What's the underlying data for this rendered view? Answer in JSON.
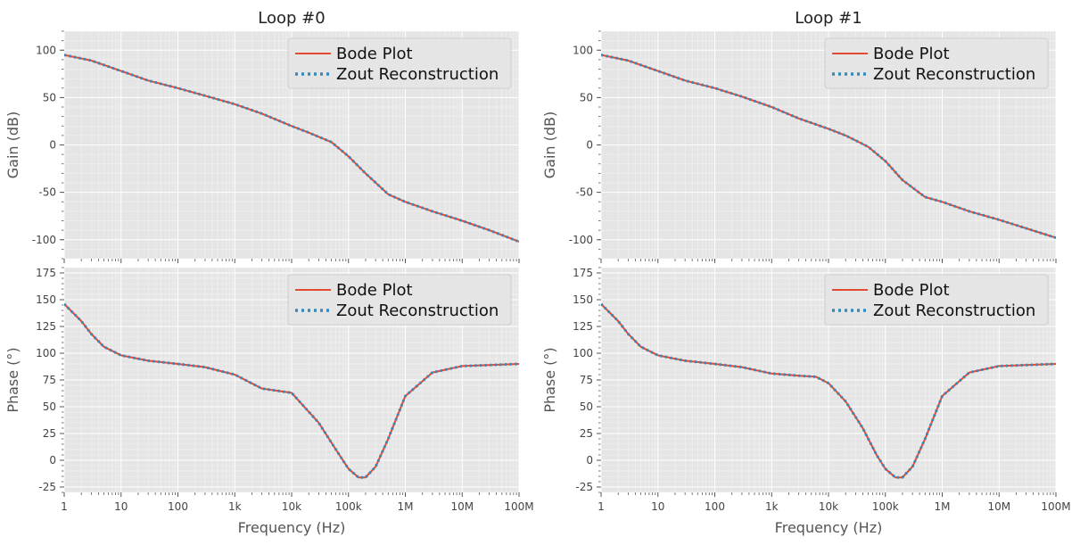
{
  "colors": {
    "panel_bg": "#e5e5e5",
    "grid_major": "#ffffff",
    "bode": "#e24a33",
    "zout": "#348abd",
    "text": "#444444"
  },
  "chart_data": [
    {
      "type": "line",
      "title": "Loop #0",
      "xscale": "log",
      "xlim": [
        1,
        100000000
      ],
      "xlabel": "",
      "ylabel": "Gain (dB)",
      "ylim": [
        -120,
        120
      ],
      "yticks": [
        100,
        50,
        0,
        -50,
        -100
      ],
      "grid": true,
      "legend": "top-right",
      "series": [
        {
          "name": "Bode Plot",
          "style": "solid",
          "color": "#e24a33",
          "x": [
            1,
            3,
            10,
            30,
            100,
            300,
            1000,
            3000,
            10000,
            20000,
            50000,
            100000,
            200000,
            500000,
            1000000,
            3000000,
            10000000,
            30000000,
            100000000
          ],
          "y": [
            95,
            89,
            78,
            68,
            60,
            52,
            43,
            33,
            20,
            13,
            3,
            -12,
            -30,
            -52,
            -60,
            -70,
            -80,
            -90,
            -102
          ]
        },
        {
          "name": "Zout Reconstruction",
          "style": "dotted",
          "color": "#348abd",
          "x": [
            1,
            3,
            10,
            30,
            100,
            300,
            1000,
            3000,
            10000,
            20000,
            50000,
            100000,
            200000,
            500000,
            1000000,
            3000000,
            10000000,
            30000000,
            100000000
          ],
          "y": [
            95,
            89,
            78,
            68,
            60,
            52,
            43,
            33,
            20,
            13,
            3,
            -12,
            -30,
            -52,
            -60,
            -70,
            -80,
            -90,
            -102
          ]
        }
      ]
    },
    {
      "type": "line",
      "title": "",
      "xscale": "log",
      "xlim": [
        1,
        100000000
      ],
      "xticklabels": [
        "1",
        "10",
        "100",
        "1k",
        "10k",
        "100k",
        "1M",
        "10M",
        "100M"
      ],
      "xlabel": "Frequency (Hz)",
      "ylabel": "Phase (°)",
      "ylim": [
        -30,
        180
      ],
      "yticks": [
        175,
        150,
        125,
        100,
        75,
        50,
        25,
        0,
        -25
      ],
      "grid": true,
      "legend": "top-right",
      "series": [
        {
          "name": "Bode Plot",
          "style": "solid",
          "color": "#e24a33",
          "x": [
            1,
            2,
            3,
            5,
            10,
            30,
            100,
            300,
            1000,
            3000,
            10000,
            30000,
            60000,
            100000,
            150000,
            200000,
            300000,
            500000,
            1000000,
            3000000,
            10000000,
            100000000
          ],
          "y": [
            146,
            130,
            118,
            106,
            98,
            93,
            90,
            87,
            80,
            67,
            63,
            35,
            10,
            -8,
            -16,
            -16,
            -6,
            20,
            60,
            82,
            88,
            90
          ]
        },
        {
          "name": "Zout Reconstruction",
          "style": "dotted",
          "color": "#348abd",
          "x": [
            1,
            2,
            3,
            5,
            10,
            30,
            100,
            300,
            1000,
            3000,
            10000,
            30000,
            60000,
            100000,
            150000,
            200000,
            300000,
            500000,
            1000000,
            3000000,
            10000000,
            100000000
          ],
          "y": [
            146,
            130,
            118,
            106,
            98,
            93,
            90,
            87,
            80,
            67,
            63,
            35,
            10,
            -8,
            -16,
            -16,
            -6,
            20,
            60,
            82,
            88,
            90
          ]
        }
      ]
    },
    {
      "type": "line",
      "title": "Loop #1",
      "xscale": "log",
      "xlim": [
        1,
        100000000
      ],
      "xlabel": "",
      "ylabel": "Gain (dB)",
      "ylim": [
        -120,
        120
      ],
      "yticks": [
        100,
        50,
        0,
        -50,
        -100
      ],
      "grid": true,
      "legend": "top-right",
      "series": [
        {
          "name": "Bode Plot",
          "style": "solid",
          "color": "#e24a33",
          "x": [
            1,
            3,
            10,
            30,
            100,
            300,
            1000,
            3000,
            10000,
            20000,
            50000,
            100000,
            200000,
            500000,
            1000000,
            3000000,
            10000000,
            30000000,
            100000000
          ],
          "y": [
            95,
            89,
            78,
            68,
            60,
            51,
            40,
            28,
            17,
            10,
            -2,
            -17,
            -37,
            -55,
            -60,
            -70,
            -79,
            -88,
            -98
          ]
        },
        {
          "name": "Zout Reconstruction",
          "style": "dotted",
          "color": "#348abd",
          "x": [
            1,
            3,
            10,
            30,
            100,
            300,
            1000,
            3000,
            10000,
            20000,
            50000,
            100000,
            200000,
            500000,
            1000000,
            3000000,
            10000000,
            30000000,
            100000000
          ],
          "y": [
            95,
            89,
            78,
            68,
            60,
            51,
            40,
            28,
            17,
            10,
            -2,
            -17,
            -37,
            -55,
            -60,
            -70,
            -79,
            -88,
            -98
          ]
        }
      ]
    },
    {
      "type": "line",
      "title": "",
      "xscale": "log",
      "xlim": [
        1,
        100000000
      ],
      "xticklabels": [
        "1",
        "10",
        "100",
        "1k",
        "10k",
        "100k",
        "1M",
        "10M",
        "100M"
      ],
      "xlabel": "Frequency (Hz)",
      "ylabel": "Phase (°)",
      "ylim": [
        -30,
        180
      ],
      "yticks": [
        175,
        150,
        125,
        100,
        75,
        50,
        25,
        0,
        -25
      ],
      "grid": true,
      "legend": "top-right",
      "series": [
        {
          "name": "Bode Plot",
          "style": "solid",
          "color": "#e24a33",
          "x": [
            1,
            2,
            3,
            5,
            10,
            30,
            100,
            300,
            1000,
            3000,
            6000,
            10000,
            20000,
            40000,
            70000,
            100000,
            150000,
            200000,
            300000,
            500000,
            1000000,
            3000000,
            10000000,
            100000000
          ],
          "y": [
            146,
            130,
            118,
            106,
            98,
            93,
            90,
            87,
            81,
            79,
            78,
            72,
            55,
            30,
            5,
            -8,
            -16,
            -16,
            -6,
            20,
            60,
            82,
            88,
            90
          ]
        },
        {
          "name": "Zout Reconstruction",
          "style": "dotted",
          "color": "#348abd",
          "x": [
            1,
            2,
            3,
            5,
            10,
            30,
            100,
            300,
            1000,
            3000,
            6000,
            10000,
            20000,
            40000,
            70000,
            100000,
            150000,
            200000,
            300000,
            500000,
            1000000,
            3000000,
            10000000,
            100000000
          ],
          "y": [
            146,
            130,
            118,
            106,
            98,
            93,
            90,
            87,
            81,
            79,
            78,
            72,
            55,
            30,
            5,
            -8,
            -16,
            -16,
            -6,
            20,
            60,
            82,
            88,
            90
          ]
        }
      ]
    }
  ]
}
